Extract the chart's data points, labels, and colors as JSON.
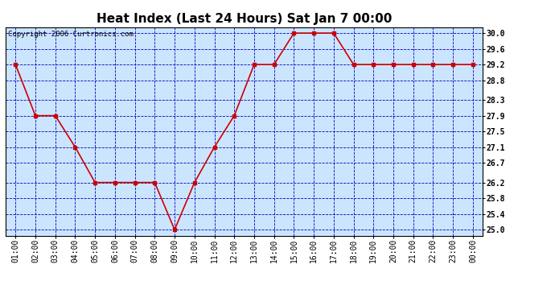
{
  "title": "Heat Index (Last 24 Hours) Sat Jan 7 00:00",
  "copyright": "Copyright 2006 Curtronics.com",
  "x_labels": [
    "01:00",
    "02:00",
    "03:00",
    "04:00",
    "05:00",
    "06:00",
    "07:00",
    "08:00",
    "09:00",
    "10:00",
    "11:00",
    "12:00",
    "13:00",
    "14:00",
    "15:00",
    "16:00",
    "17:00",
    "18:00",
    "19:00",
    "20:00",
    "21:00",
    "22:00",
    "23:00",
    "00:00"
  ],
  "y_values": [
    29.2,
    27.9,
    27.9,
    27.1,
    26.2,
    26.2,
    26.2,
    26.2,
    25.0,
    26.2,
    27.1,
    27.9,
    29.2,
    29.2,
    30.0,
    30.0,
    30.0,
    29.2,
    29.2,
    29.2,
    29.2,
    29.2,
    29.2,
    29.2
  ],
  "y_ticks": [
    25.0,
    25.4,
    25.8,
    26.2,
    26.7,
    27.1,
    27.5,
    27.9,
    28.3,
    28.8,
    29.2,
    29.6,
    30.0
  ],
  "ylim": [
    24.85,
    30.15
  ],
  "line_color": "#cc0000",
  "marker_color": "#cc0000",
  "bg_color": "#cce5ff",
  "grid_color": "#0000bb",
  "title_fontsize": 11,
  "tick_fontsize": 7,
  "copyright_fontsize": 6.5
}
